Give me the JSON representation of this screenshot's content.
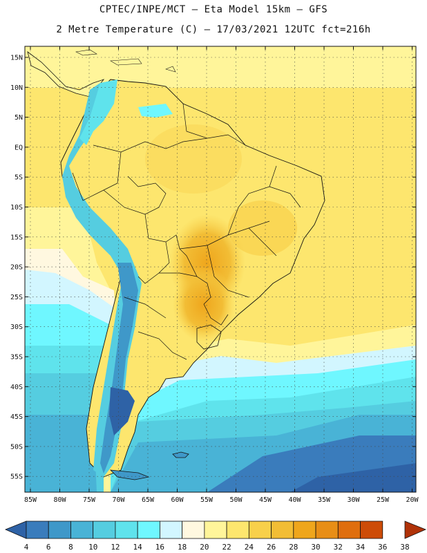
{
  "header": {
    "line1": "CPTEC/INPE/MCT –  Eta Model 15km – GFS",
    "line2": "2 Metre Temperature (C) – 17/03/2021 12UTC fct=216h"
  },
  "map": {
    "lat_labels": [
      "15N",
      "10N",
      "5N",
      "EQ",
      "5S",
      "10S",
      "15S",
      "20S",
      "25S",
      "30S",
      "35S",
      "40S",
      "45S",
      "50S",
      "55S"
    ],
    "lon_labels": [
      "85W",
      "80W",
      "75W",
      "70W",
      "65W",
      "60W",
      "55W",
      "50W",
      "45W",
      "40W",
      "35W",
      "30W",
      "25W",
      "20W"
    ]
  },
  "colorbar": {
    "levels": [
      "4",
      "6",
      "8",
      "10",
      "12",
      "14",
      "16",
      "18",
      "20",
      "22",
      "24",
      "26",
      "28",
      "30",
      "32",
      "34",
      "36",
      "38"
    ],
    "colors": [
      "#2e62a6",
      "#3a7cbc",
      "#3f98c9",
      "#49b3d6",
      "#55cde0",
      "#5fe3ec",
      "#6ff7ff",
      "#d2f6ff",
      "#fff8e0",
      "#fff59a",
      "#fde66e",
      "#f8d04a",
      "#f2bd35",
      "#efa61c",
      "#e88e16",
      "#df6e0e",
      "#cd4c08",
      "#b03208"
    ]
  }
}
